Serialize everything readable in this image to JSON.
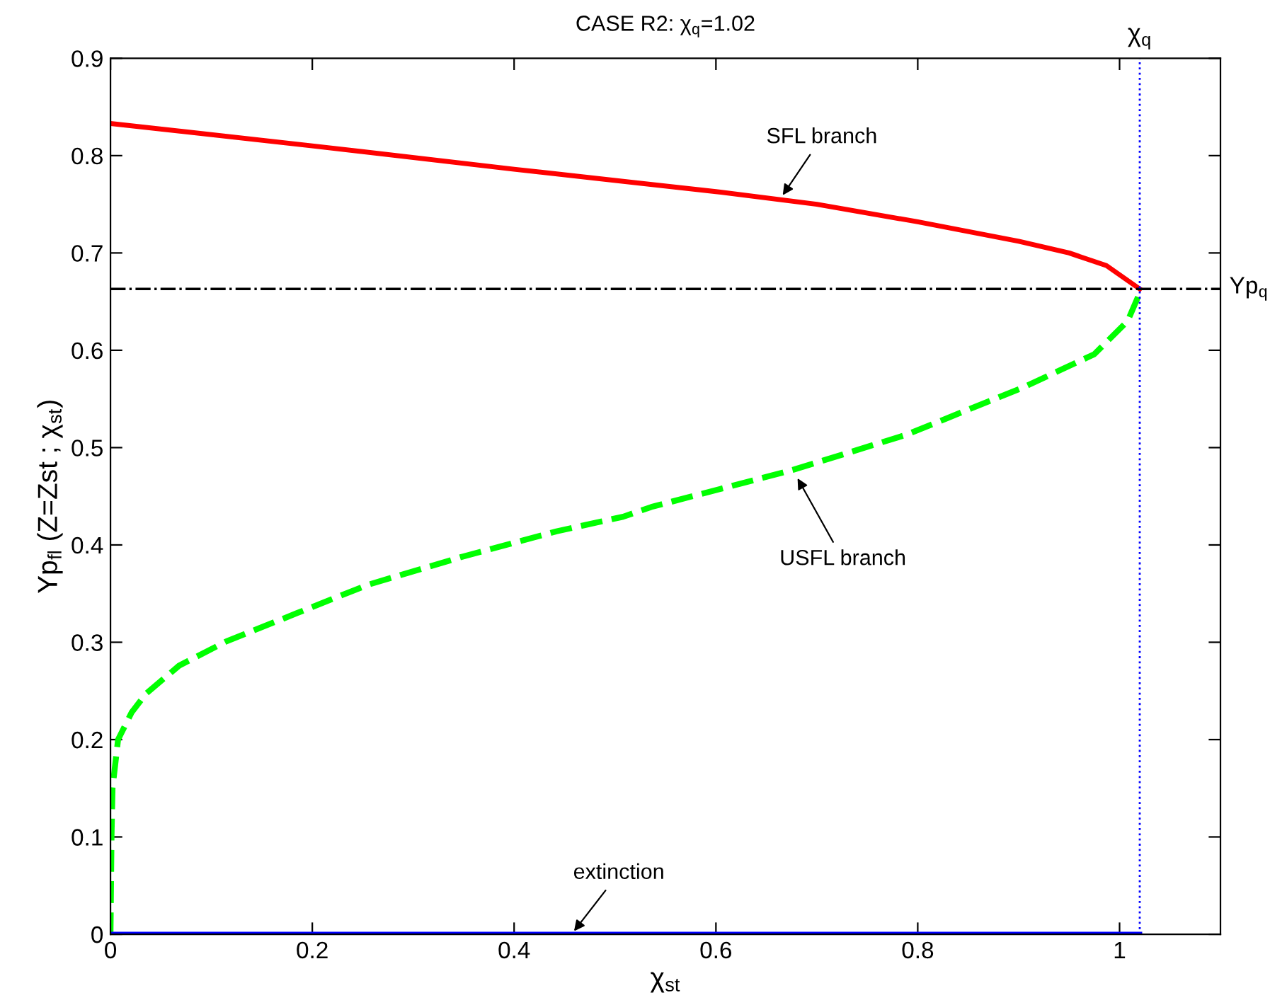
{
  "chart_data": {
    "type": "line",
    "title": "CASE R2: χ$_{q}$=1.02",
    "xlabel": "χ$_{st}$",
    "ylabel": "Yp$_{fl}$ (Z=Zst ; χ$_{st}$)",
    "xlim": [
      0,
      1.1
    ],
    "ylim": [
      0,
      0.9
    ],
    "xticks": [
      0,
      0.2,
      0.4,
      0.6,
      0.8,
      1
    ],
    "yticks": [
      0,
      0.1,
      0.2,
      0.3,
      0.4,
      0.5,
      0.6,
      0.7,
      0.8,
      0.9
    ],
    "grid": false,
    "legend": false,
    "series": [
      {
        "color": "#ff0000",
        "line_style": "solid",
        "x": [
          0,
          0.2,
          0.4,
          0.6,
          0.7,
          0.8,
          0.9,
          0.95,
          0.987,
          1.02
        ],
        "values": [
          0.833,
          0.81,
          0.786,
          0.763,
          0.75,
          0.732,
          0.712,
          0.7,
          0.687,
          0.663
        ]
      },
      {
        "color": "#00ff00",
        "line_style": "dashed",
        "x": [
          0,
          0.001,
          0.002,
          0.0075,
          0.021,
          0.035,
          0.068,
          0.115,
          0.185,
          0.255,
          0.349,
          0.442,
          0.508,
          0.536,
          0.676,
          0.788,
          0.905,
          0.975,
          1.008,
          1.02,
          1.02
        ],
        "values": [
          0,
          0.1,
          0.15,
          0.2,
          0.228,
          0.247,
          0.276,
          0.301,
          0.33,
          0.359,
          0.388,
          0.414,
          0.429,
          0.439,
          0.477,
          0.513,
          0.562,
          0.596,
          0.63,
          0.659,
          0.663
        ]
      },
      {
        "color": "#0000ff",
        "line_style": "solid",
        "x": [
          0,
          1.02
        ],
        "values": [
          0,
          0
        ]
      }
    ],
    "ref_lines": [
      {
        "axis": "y",
        "value": 0.663,
        "label": "Yp$_{q}$",
        "color": "#000000",
        "line_style": "dashdot"
      },
      {
        "axis": "x",
        "value": 1.02,
        "label": "χ$_{q}$",
        "color": "#0000ff",
        "line_style": "dotted"
      }
    ],
    "annotations": [
      {
        "text": "SFL branch",
        "x": 0.664,
        "y": 0.756
      },
      {
        "text": "USFL branch",
        "x": 0.679,
        "y": 0.472
      },
      {
        "text": "extinction",
        "x": 0.457,
        "y": 0
      }
    ]
  }
}
